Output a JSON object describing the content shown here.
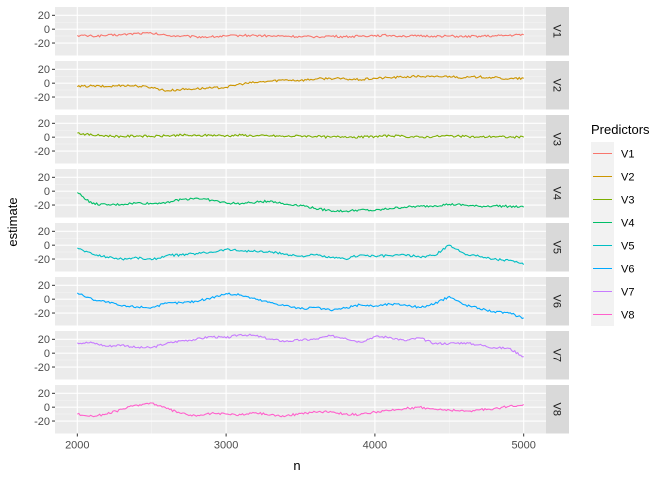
{
  "chart_data": {
    "type": "line",
    "xlabel": "n",
    "ylabel": "estimate",
    "xlim": [
      1850,
      5150
    ],
    "ylim": [
      -38,
      32
    ],
    "x_ticks": [
      2000,
      3000,
      4000,
      5000
    ],
    "y_ticks": [
      -20,
      0,
      20
    ],
    "grid": true,
    "legend": {
      "title": "Predictors",
      "position": "right"
    },
    "facets": "rows",
    "series": [
      {
        "name": "V1",
        "color": "#F8766D",
        "x": [
          2000,
          2100,
          2200,
          2300,
          2400,
          2500,
          2600,
          2700,
          2800,
          2900,
          3000,
          3100,
          3200,
          3300,
          3400,
          3500,
          3600,
          3700,
          3800,
          3900,
          4000,
          4100,
          4200,
          4300,
          4400,
          4500,
          4600,
          4700,
          4800,
          4900,
          5000
        ],
        "values": [
          -9,
          -10,
          -9,
          -8,
          -6,
          -6,
          -9,
          -10,
          -11,
          -11,
          -10,
          -9,
          -9,
          -10,
          -10,
          -11,
          -11,
          -10,
          -11,
          -10,
          -9,
          -9,
          -10,
          -10,
          -10,
          -10,
          -11,
          -10,
          -10,
          -9,
          -8
        ]
      },
      {
        "name": "V2",
        "color": "#CD9600",
        "x": [
          2000,
          2100,
          2200,
          2300,
          2400,
          2500,
          2600,
          2700,
          2800,
          2900,
          3000,
          3100,
          3200,
          3300,
          3400,
          3500,
          3600,
          3700,
          3800,
          3900,
          4000,
          4100,
          4200,
          4300,
          4400,
          4500,
          4600,
          4700,
          4800,
          4900,
          5000
        ],
        "values": [
          -5,
          -4,
          -5,
          -3,
          -4,
          -6,
          -11,
          -9,
          -8,
          -7,
          -6,
          -1,
          1,
          3,
          5,
          4,
          6,
          7,
          6,
          5,
          7,
          8,
          9,
          10,
          9,
          10,
          8,
          9,
          8,
          6,
          7
        ]
      },
      {
        "name": "V3",
        "color": "#7CAE00",
        "x": [
          2000,
          2100,
          2200,
          2300,
          2400,
          2500,
          2600,
          2700,
          2800,
          2900,
          3000,
          3100,
          3200,
          3300,
          3400,
          3500,
          3600,
          3700,
          3800,
          3900,
          4000,
          4100,
          4200,
          4300,
          4400,
          4500,
          4600,
          4700,
          4800,
          4900,
          5000
        ],
        "values": [
          6,
          3,
          2,
          1,
          2,
          1,
          2,
          3,
          2,
          3,
          2,
          3,
          2,
          2,
          1,
          2,
          1,
          0,
          1,
          0,
          1,
          2,
          1,
          0,
          1,
          2,
          1,
          0,
          1,
          0,
          0
        ]
      },
      {
        "name": "V4",
        "color": "#00BE67",
        "x": [
          2000,
          2100,
          2200,
          2300,
          2400,
          2500,
          2600,
          2700,
          2800,
          2900,
          3000,
          3100,
          3200,
          3300,
          3400,
          3500,
          3600,
          3700,
          3800,
          3900,
          4000,
          4100,
          4200,
          4300,
          4400,
          4500,
          4600,
          4700,
          4800,
          4900,
          5000
        ],
        "values": [
          -2,
          -18,
          -20,
          -19,
          -17,
          -18,
          -16,
          -12,
          -10,
          -13,
          -17,
          -18,
          -16,
          -14,
          -19,
          -20,
          -25,
          -28,
          -29,
          -27,
          -28,
          -25,
          -23,
          -22,
          -21,
          -19,
          -20,
          -22,
          -21,
          -22,
          -23
        ]
      },
      {
        "name": "V5",
        "color": "#00BFC4",
        "x": [
          2000,
          2100,
          2200,
          2300,
          2400,
          2500,
          2600,
          2700,
          2800,
          2900,
          3000,
          3100,
          3200,
          3300,
          3400,
          3500,
          3600,
          3700,
          3800,
          3900,
          4000,
          4100,
          4200,
          4300,
          4400,
          4500,
          4600,
          4700,
          4800,
          4900,
          5000
        ],
        "values": [
          -4,
          -13,
          -17,
          -20,
          -18,
          -21,
          -15,
          -14,
          -12,
          -10,
          -6,
          -8,
          -9,
          -10,
          -13,
          -16,
          -14,
          -18,
          -20,
          -14,
          -16,
          -15,
          -14,
          -17,
          -15,
          0,
          -12,
          -16,
          -20,
          -22,
          -28
        ]
      },
      {
        "name": "V6",
        "color": "#00A9FF",
        "x": [
          2000,
          2100,
          2200,
          2300,
          2400,
          2500,
          2600,
          2700,
          2800,
          2900,
          3000,
          3100,
          3200,
          3300,
          3400,
          3500,
          3600,
          3700,
          3800,
          3900,
          4000,
          4100,
          4200,
          4300,
          4400,
          4500,
          4600,
          4700,
          4800,
          4900,
          5000
        ],
        "values": [
          9,
          0,
          -4,
          -10,
          -11,
          -12,
          -6,
          -5,
          -3,
          2,
          8,
          6,
          0,
          -5,
          -9,
          -14,
          -12,
          -16,
          -13,
          -8,
          -10,
          -7,
          -8,
          -12,
          -7,
          4,
          -8,
          -13,
          -18,
          -20,
          -27
        ]
      },
      {
        "name": "V7",
        "color": "#C77CFF",
        "x": [
          2000,
          2100,
          2200,
          2300,
          2400,
          2500,
          2600,
          2700,
          2800,
          2900,
          3000,
          3100,
          3200,
          3300,
          3400,
          3500,
          3600,
          3700,
          3800,
          3900,
          4000,
          4100,
          4200,
          4300,
          4400,
          4500,
          4600,
          4700,
          4800,
          4900,
          5000
        ],
        "values": [
          15,
          15,
          10,
          12,
          8,
          8,
          14,
          18,
          20,
          24,
          22,
          27,
          25,
          20,
          17,
          19,
          20,
          25,
          22,
          16,
          24,
          23,
          18,
          22,
          14,
          14,
          15,
          12,
          8,
          7,
          -5
        ]
      },
      {
        "name": "V8",
        "color": "#FF61CC",
        "x": [
          2000,
          2100,
          2200,
          2300,
          2400,
          2500,
          2600,
          2700,
          2800,
          2900,
          3000,
          3100,
          3200,
          3300,
          3400,
          3500,
          3600,
          3700,
          3800,
          3900,
          4000,
          4100,
          4200,
          4300,
          4400,
          4500,
          4600,
          4700,
          4800,
          4900,
          5000
        ],
        "values": [
          -10,
          -13,
          -10,
          -3,
          3,
          6,
          -2,
          -9,
          -13,
          -9,
          -10,
          -11,
          -8,
          -11,
          -13,
          -9,
          -7,
          -6,
          -10,
          -11,
          -7,
          -5,
          -2,
          0,
          -3,
          -4,
          -6,
          -4,
          -2,
          1,
          4
        ]
      }
    ]
  }
}
